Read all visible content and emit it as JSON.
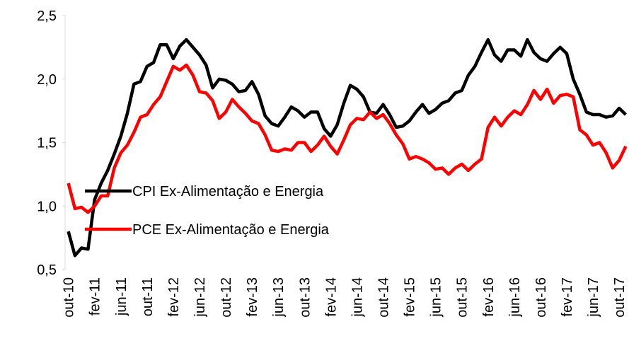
{
  "chart_data": {
    "type": "line",
    "categories": [
      "out-10",
      null,
      null,
      null,
      "fev-11",
      null,
      null,
      null,
      "jun-11",
      null,
      null,
      null,
      "out-11",
      null,
      null,
      null,
      "fev-12",
      null,
      null,
      null,
      "jun-12",
      null,
      null,
      null,
      "out-12",
      null,
      null,
      null,
      "fev-13",
      null,
      null,
      null,
      "jun-13",
      null,
      null,
      null,
      "out-13",
      null,
      null,
      null,
      "fev-14",
      null,
      null,
      null,
      "jun-14",
      null,
      null,
      null,
      "out-14",
      null,
      null,
      null,
      "fev-15",
      null,
      null,
      null,
      "jun-15",
      null,
      null,
      null,
      "out-15",
      null,
      null,
      null,
      "fev-16",
      null,
      null,
      null,
      "jun-16",
      null,
      null,
      null,
      "out-16",
      null,
      null,
      null,
      "fev-17",
      null,
      null,
      null,
      "jun-17",
      null,
      null,
      null,
      "out-17",
      null
    ],
    "series": [
      {
        "name": "CPI Ex-Alimentação e Energia",
        "color": "#000000",
        "values": [
          0.8,
          0.61,
          0.67,
          0.66,
          1.05,
          1.18,
          1.28,
          1.41,
          1.55,
          1.73,
          1.96,
          1.98,
          2.1,
          2.13,
          2.27,
          2.27,
          2.16,
          2.26,
          2.31,
          2.25,
          2.19,
          2.11,
          1.93,
          2.0,
          1.99,
          1.96,
          1.9,
          1.91,
          1.98,
          1.88,
          1.71,
          1.65,
          1.63,
          1.7,
          1.78,
          1.75,
          1.7,
          1.74,
          1.74,
          1.61,
          1.55,
          1.64,
          1.81,
          1.95,
          1.92,
          1.86,
          1.74,
          1.73,
          1.8,
          1.72,
          1.62,
          1.63,
          1.67,
          1.74,
          1.8,
          1.73,
          1.76,
          1.81,
          1.83,
          1.89,
          1.91,
          2.03,
          2.1,
          2.21,
          2.31,
          2.19,
          2.14,
          2.23,
          2.23,
          2.18,
          2.31,
          2.21,
          2.16,
          2.14,
          2.2,
          2.25,
          2.2,
          2.0,
          1.88,
          1.74,
          1.72,
          1.72,
          1.7,
          1.71,
          1.77,
          1.72
        ]
      },
      {
        "name": "PCE Ex-Alimentação e Energia",
        "color": "#ff0000",
        "values": [
          1.18,
          0.98,
          0.99,
          0.95,
          1.0,
          1.08,
          1.08,
          1.3,
          1.42,
          1.48,
          1.58,
          1.7,
          1.72,
          1.8,
          1.86,
          1.98,
          2.1,
          2.07,
          2.11,
          2.03,
          1.9,
          1.89,
          1.83,
          1.69,
          1.74,
          1.84,
          1.78,
          1.73,
          1.67,
          1.65,
          1.56,
          1.44,
          1.43,
          1.45,
          1.44,
          1.5,
          1.5,
          1.43,
          1.48,
          1.55,
          1.47,
          1.41,
          1.52,
          1.64,
          1.69,
          1.68,
          1.74,
          1.69,
          1.72,
          1.65,
          1.56,
          1.49,
          1.37,
          1.39,
          1.37,
          1.34,
          1.29,
          1.3,
          1.25,
          1.3,
          1.33,
          1.28,
          1.33,
          1.37,
          1.62,
          1.7,
          1.63,
          1.7,
          1.75,
          1.72,
          1.8,
          1.91,
          1.84,
          1.92,
          1.81,
          1.87,
          1.88,
          1.86,
          1.6,
          1.56,
          1.48,
          1.5,
          1.42,
          1.3,
          1.36,
          1.47
        ]
      }
    ],
    "ylim": [
      0.5,
      2.5
    ],
    "yticks": [
      {
        "value": 0.5,
        "label": "0,5"
      },
      {
        "value": 1.0,
        "label": "1,0"
      },
      {
        "value": 1.5,
        "label": "1,5"
      },
      {
        "value": 2.0,
        "label": "2,0"
      },
      {
        "value": 2.5,
        "label": "2,5"
      }
    ],
    "grid": false
  }
}
